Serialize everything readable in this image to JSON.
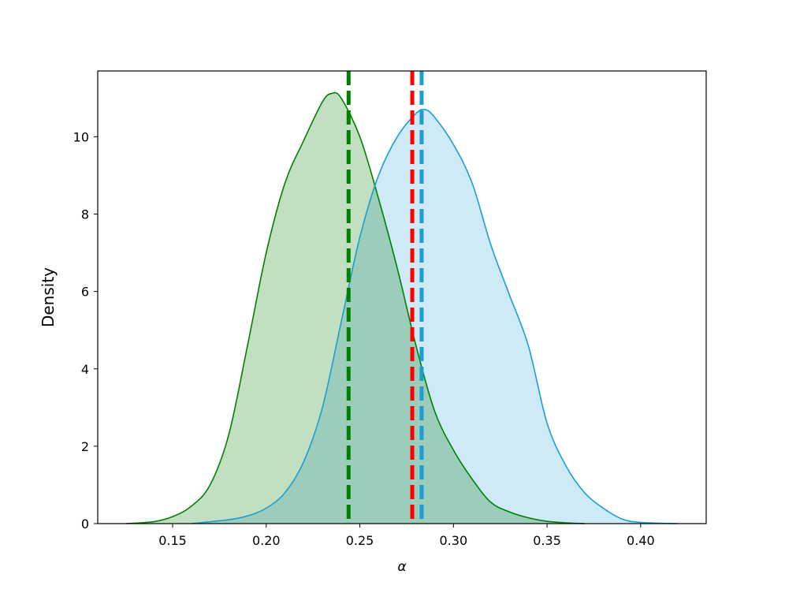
{
  "chart_data": {
    "type": "area",
    "title": "",
    "xlabel": "α",
    "ylabel": "Density",
    "xlim": [
      0.11,
      0.435
    ],
    "ylim": [
      0,
      11.7
    ],
    "xticks": [
      0.15,
      0.2,
      0.25,
      0.3,
      0.35,
      0.4
    ],
    "xtick_labels": [
      "0.15",
      "0.20",
      "0.25",
      "0.30",
      "0.35",
      "0.40"
    ],
    "yticks": [
      0,
      2,
      4,
      6,
      8,
      10
    ],
    "ytick_labels": [
      "0",
      "2",
      "4",
      "6",
      "8",
      "10"
    ],
    "grid": false,
    "legend": "none",
    "series": [
      {
        "color": "#008000",
        "fill_color": "#c2e0c1",
        "x": [
          0.125,
          0.14,
          0.15,
          0.16,
          0.17,
          0.18,
          0.19,
          0.2,
          0.21,
          0.22,
          0.23,
          0.235,
          0.24,
          0.25,
          0.26,
          0.27,
          0.28,
          0.29,
          0.3,
          0.31,
          0.32,
          0.33,
          0.34,
          0.35,
          0.36,
          0.37
        ],
        "y": [
          0.0,
          0.05,
          0.18,
          0.45,
          1.0,
          2.3,
          4.6,
          7.0,
          8.8,
          9.9,
          10.9,
          11.12,
          11.0,
          10.0,
          8.4,
          6.6,
          4.6,
          2.9,
          1.9,
          1.15,
          0.55,
          0.3,
          0.15,
          0.06,
          0.02,
          0.0
        ]
      },
      {
        "color": "#1a9fd4",
        "fill_color": "#c4e6f5",
        "x": [
          0.16,
          0.18,
          0.19,
          0.2,
          0.21,
          0.22,
          0.23,
          0.24,
          0.25,
          0.26,
          0.27,
          0.28,
          0.285,
          0.29,
          0.3,
          0.31,
          0.32,
          0.33,
          0.34,
          0.35,
          0.36,
          0.37,
          0.38,
          0.39,
          0.4,
          0.42
        ],
        "y": [
          0.0,
          0.1,
          0.2,
          0.4,
          0.8,
          1.6,
          3.0,
          5.2,
          7.4,
          9.0,
          10.0,
          10.6,
          10.7,
          10.5,
          9.8,
          8.8,
          7.2,
          5.9,
          4.6,
          2.6,
          1.5,
          0.8,
          0.4,
          0.12,
          0.03,
          0.0
        ]
      }
    ],
    "vlines": [
      {
        "x": 0.244,
        "color": "#008000",
        "style": "dashed"
      },
      {
        "x": 0.278,
        "color": "#ff0000",
        "style": "dashed"
      },
      {
        "x": 0.283,
        "color": "#1a9fd4",
        "style": "dashed"
      }
    ]
  }
}
